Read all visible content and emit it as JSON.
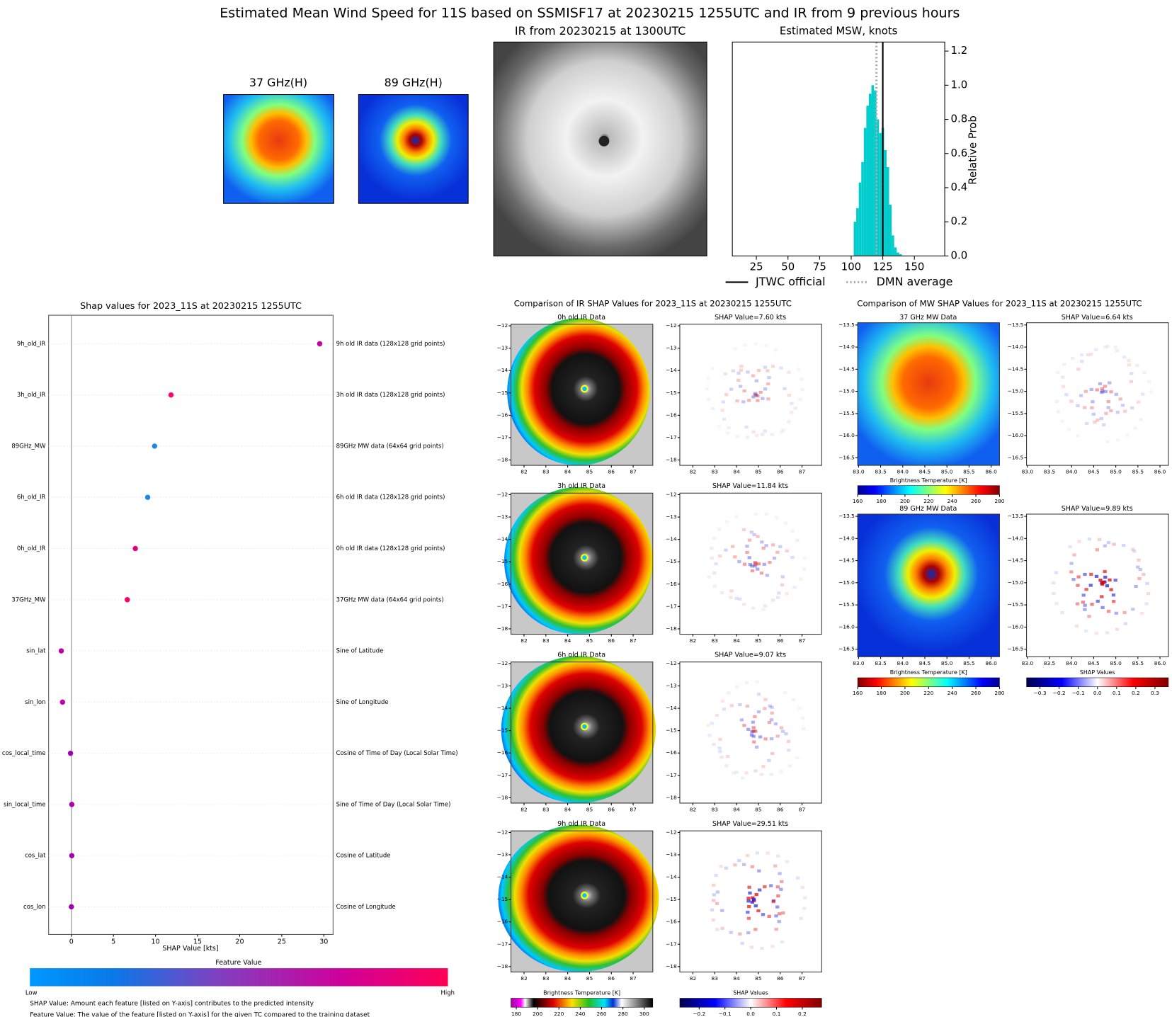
{
  "title": "Estimated Mean Wind Speed for 11S based on SSMISF17 at 20230215 1255UTC and IR from 9 previous hours",
  "top_panels": {
    "mw37_title": "37 GHz(H)",
    "mw89_title": "89 GHz(H)",
    "ir_title": "IR from 20230215 at 1300UTC"
  },
  "chart_data": [
    {
      "type": "histogram",
      "title": "Estimated MSW, knots",
      "ylabel": "Relative Prob",
      "color": "#00cccc",
      "bins": [
        102,
        104,
        106,
        108,
        110,
        112,
        114,
        116,
        118,
        120,
        122,
        124,
        126,
        128,
        130,
        132,
        134,
        136,
        138,
        140
      ],
      "values": [
        0.2,
        0.28,
        0.43,
        0.55,
        0.75,
        0.88,
        0.95,
        1.0,
        0.97,
        0.8,
        0.72,
        0.75,
        0.62,
        0.52,
        0.3,
        0.12,
        0.05,
        0.02,
        0.01
      ],
      "xlim": [
        6,
        174
      ],
      "ylim": [
        0,
        1.253
      ],
      "xticks": [
        25,
        50,
        75,
        100,
        125,
        150
      ],
      "yticks": [
        {
          "value": 0,
          "label": "0.0"
        },
        0.2,
        0.4,
        0.6,
        0.8,
        {
          "value": 1,
          "label": "1.0"
        },
        1.2
      ],
      "lines": [
        {
          "name": "JTWC official",
          "value": 125,
          "color": "#000000",
          "style": "solid"
        },
        {
          "name": "DMN average",
          "value": 120,
          "color": "#aaaaaa",
          "style": "dotted"
        }
      ],
      "legend": "below"
    },
    {
      "type": "dot",
      "title": "Shap values for 2023_11S at 20230215 1255UTC",
      "xlabel": "SHAP Value [kts]",
      "categories": [
        "9h_old_IR",
        "3h_old_IR",
        "89GHz_MW",
        "6h_old_IR",
        "0h_old_IR",
        "37GHz_MW",
        "sin_lat",
        "sin_lon",
        "cos_local_time",
        "sin_local_time",
        "cos_lat",
        "cos_lon"
      ],
      "descriptions": [
        "9h old IR data (128x128 grid points)",
        "3h old IR data (128x128 grid points)",
        "89GHz MW data (64x64 grid points)",
        "6h old IR data (128x128 grid points)",
        "0h old IR data (128x128 grid points)",
        "37GHz MW data (64x64 grid points)",
        "Sine of Latitude",
        "Sine of Longitude",
        "Cosine of Time of Day (Local Solar Time)",
        "Sine of Time of Day (Local Solar Time)",
        "Cosine of Latitude",
        "Cosine of Longitude"
      ],
      "values": [
        29.51,
        11.84,
        9.89,
        9.07,
        7.6,
        6.64,
        -1.2,
        -1.05,
        -0.1,
        0.05,
        0.05,
        0.0
      ],
      "colors": [
        "#c800a0",
        "#ff0070",
        "#1e88e5",
        "#1e88e5",
        "#e0007a",
        "#ff0060",
        "#c000a0",
        "#c000a8",
        "#a000b0",
        "#a800b0",
        "#a000b0",
        "#a000b0"
      ],
      "xlim": [
        -2.7,
        31.1
      ],
      "xticks": [
        0,
        5,
        10,
        15,
        20,
        25,
        30
      ],
      "colorbar": {
        "label": "Feature Value",
        "low": "Low",
        "high": "High"
      },
      "notes": [
        "SHAP Value: Amount each feature [listed on Y-axis] contributes to the predicted intensity",
        "Feature Value: The value of the feature [listed on Y-axis] for the given TC compared to the training dataset"
      ]
    }
  ],
  "ir_comparison": {
    "title": "Comparison of IR SHAP Values for 2023_11S at 20230215 1255UTC",
    "xlim": [
      81.4,
      87.9
    ],
    "ylim": [
      -18.24,
      -11.93
    ],
    "xticks": [
      82,
      83,
      84,
      85,
      86,
      87
    ],
    "yticks": [
      {
        "value": -12,
        "label": "−12"
      },
      {
        "value": -13,
        "label": "−13"
      },
      {
        "value": -14,
        "label": "−14"
      },
      {
        "value": -15,
        "label": "−15"
      },
      {
        "value": -16,
        "label": "−16"
      },
      {
        "value": -17,
        "label": "−17"
      },
      {
        "value": -18,
        "label": "−18"
      }
    ],
    "rows": [
      {
        "data_title": "0h old IR Data",
        "shap_title": "SHAP Value=7.60 kts"
      },
      {
        "data_title": "3h old IR Data",
        "shap_title": "SHAP Value=11.84 kts"
      },
      {
        "data_title": "6h old IR Data",
        "shap_title": "SHAP Value=9.07 kts"
      },
      {
        "data_title": "9h old IR Data",
        "shap_title": "SHAP Value=29.51 kts"
      }
    ],
    "bt_colorbar": {
      "label": "Brightness Temperature [K]",
      "lim": [
        175,
        308
      ],
      "ticks": [
        180,
        200,
        220,
        240,
        260,
        280,
        300
      ]
    },
    "shap_colorbar": {
      "label": "SHAP Values",
      "lim": [
        -0.275,
        0.275
      ],
      "ticks": [
        {
          "value": -0.2,
          "label": "−0.2"
        },
        {
          "value": -0.1,
          "label": "−0.1"
        },
        {
          "value": 0,
          "label": "0.0"
        },
        0.1,
        0.2
      ]
    }
  },
  "mw_comparison": {
    "title": "Comparison of MW SHAP Values for 2023_11S at 20230215 1255UTC",
    "xlim": [
      82.98,
      86.19
    ],
    "ylim": [
      -16.67,
      -13.45
    ],
    "xticks": [
      {
        "value": 83,
        "label": "83.0"
      },
      83.5,
      {
        "value": 84,
        "label": "84.0"
      },
      84.5,
      {
        "value": 85,
        "label": "85.0"
      },
      85.5,
      {
        "value": 86,
        "label": "86.0"
      }
    ],
    "yticks": [
      {
        "value": -13.5,
        "label": "−13.5"
      },
      {
        "value": -14,
        "label": "−14.0"
      },
      {
        "value": -14.5,
        "label": "−14.5"
      },
      {
        "value": -15,
        "label": "−15.0"
      },
      {
        "value": -15.5,
        "label": "−15.5"
      },
      {
        "value": -16,
        "label": "−16.0"
      },
      {
        "value": -16.5,
        "label": "−16.5"
      }
    ],
    "rows": [
      {
        "data_title": "37 GHz MW Data",
        "shap_title": "SHAP Value=6.64 kts"
      },
      {
        "data_title": "89 GHz MW Data",
        "shap_title": "SHAP Value=9.89 kts"
      }
    ],
    "bt_colorbar": {
      "label": "Brightness Temperature [K]",
      "lim": [
        160,
        280
      ],
      "ticks": [
        160,
        180,
        200,
        220,
        240,
        260,
        280
      ]
    },
    "shap_colorbar": {
      "label": "SHAP Values",
      "lim": [
        -0.37,
        0.37
      ],
      "ticks": [
        {
          "value": -0.3,
          "label": "−0.3"
        },
        {
          "value": -0.2,
          "label": "−0.2"
        },
        {
          "value": -0.1,
          "label": "−0.1"
        },
        {
          "value": 0,
          "label": "0.0"
        },
        0.1,
        0.2,
        0.3
      ]
    }
  }
}
